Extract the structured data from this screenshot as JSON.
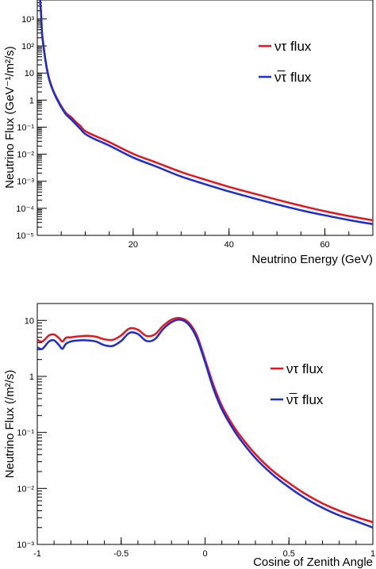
{
  "chart_data": [
    {
      "type": "line",
      "title": "",
      "xlabel": "Neutrino Energy (GeV)",
      "ylabel": "Neutrino Flux (GeV⁻¹/m²/s)",
      "xlim": [
        0,
        70
      ],
      "ylim": [
        1e-05,
        5000
      ],
      "yscale": "log",
      "xticks": [
        20,
        40,
        60
      ],
      "xtick_labels": [
        "20",
        "40",
        "60"
      ],
      "yticks": [
        1e-05,
        0.0001,
        0.001,
        0.01,
        0.1,
        1,
        10,
        100,
        1000
      ],
      "ytick_labels": [
        "10⁻⁵",
        "10⁻⁴",
        "10⁻³",
        "10⁻²",
        "10⁻¹",
        "1",
        "10",
        "10²",
        "10³"
      ],
      "grid": false,
      "legend": "top-right",
      "series": [
        {
          "name": "ντ flux",
          "color": "#e8141c",
          "x": [
            0.6,
            0.8,
            1.0,
            1.3,
            1.6,
            2.0,
            2.5,
            3,
            3.5,
            4,
            5,
            6,
            7,
            8,
            9,
            10,
            12,
            15,
            20,
            25,
            30,
            35,
            40,
            45,
            50,
            55,
            60,
            65,
            70
          ],
          "y": [
            5000,
            1500,
            300,
            100,
            40,
            15,
            6,
            3.2,
            1.9,
            1.25,
            0.6,
            0.33,
            0.24,
            0.16,
            0.11,
            0.072,
            0.048,
            0.028,
            0.0103,
            0.0048,
            0.0022,
            0.00115,
            0.00062,
            0.00036,
            0.00021,
            0.000125,
            7.8e-05,
            5.2e-05,
            3.6e-05
          ]
        },
        {
          "name": "ν̅τ flux",
          "color": "#1b2bd6",
          "x": [
            0.6,
            0.8,
            1.0,
            1.3,
            1.6,
            2.0,
            2.5,
            3,
            3.5,
            4,
            5,
            6,
            7,
            8,
            9,
            10,
            12,
            15,
            20,
            25,
            30,
            35,
            40,
            45,
            50,
            55,
            60,
            65,
            70
          ],
          "y": [
            5000,
            1400,
            280,
            95,
            38,
            14,
            5.6,
            3.0,
            1.8,
            1.15,
            0.55,
            0.29,
            0.2,
            0.13,
            0.085,
            0.056,
            0.036,
            0.021,
            0.0075,
            0.0034,
            0.0015,
            0.00078,
            0.00042,
            0.00024,
            0.00014,
            8.5e-05,
            5.5e-05,
            3.7e-05,
            2.6e-05
          ]
        }
      ]
    },
    {
      "type": "line",
      "title": "",
      "xlabel": "Cosine of Zenith Angle",
      "ylabel": "Neutrino Flux (/m²/s)",
      "xlim": [
        -1,
        1
      ],
      "ylim": [
        0.001,
        20
      ],
      "yscale": "log",
      "xticks": [
        -1,
        -0.5,
        0,
        0.5,
        1
      ],
      "xtick_labels": [
        "-1",
        "-0.5",
        "0",
        "0.5",
        "1"
      ],
      "yticks": [
        0.001,
        0.01,
        0.1,
        1,
        10
      ],
      "ytick_labels": [
        "10⁻³",
        "10⁻²",
        "10⁻¹",
        "1",
        "10"
      ],
      "grid": false,
      "legend": "right",
      "series": [
        {
          "name": "ντ flux",
          "color": "#e8141c",
          "x": [
            -1.0,
            -0.97,
            -0.93,
            -0.9,
            -0.87,
            -0.85,
            -0.83,
            -0.8,
            -0.75,
            -0.7,
            -0.65,
            -0.6,
            -0.55,
            -0.5,
            -0.45,
            -0.4,
            -0.35,
            -0.3,
            -0.25,
            -0.2,
            -0.15,
            -0.1,
            -0.05,
            0.0,
            0.05,
            0.1,
            0.15,
            0.2,
            0.3,
            0.4,
            0.5,
            0.6,
            0.7,
            0.8,
            0.9,
            1.0
          ],
          "y": [
            4.5,
            4.2,
            5.4,
            5.6,
            4.8,
            4.2,
            4.9,
            5.0,
            5.2,
            5.3,
            5.1,
            4.6,
            4.5,
            5.4,
            7.2,
            6.8,
            5.3,
            5.6,
            8.0,
            10.3,
            11.0,
            9.3,
            5.5,
            2.0,
            0.7,
            0.3,
            0.16,
            0.095,
            0.041,
            0.021,
            0.0125,
            0.0079,
            0.0054,
            0.004,
            0.0031,
            0.0025
          ]
        },
        {
          "name": "ν̅τ flux",
          "color": "#1b2bd6",
          "x": [
            -1.0,
            -0.97,
            -0.93,
            -0.9,
            -0.87,
            -0.85,
            -0.83,
            -0.8,
            -0.75,
            -0.7,
            -0.65,
            -0.6,
            -0.55,
            -0.5,
            -0.45,
            -0.4,
            -0.35,
            -0.3,
            -0.25,
            -0.2,
            -0.15,
            -0.1,
            -0.05,
            0.0,
            0.05,
            0.1,
            0.15,
            0.2,
            0.3,
            0.4,
            0.5,
            0.6,
            0.7,
            0.8,
            0.9,
            1.0
          ],
          "y": [
            3.3,
            3.1,
            4.2,
            4.4,
            3.6,
            3.1,
            3.8,
            4.2,
            4.4,
            4.4,
            4.2,
            3.6,
            3.5,
            4.3,
            6.0,
            5.7,
            4.3,
            4.6,
            7.0,
            9.3,
            10.3,
            8.6,
            4.9,
            1.8,
            0.6,
            0.26,
            0.14,
            0.082,
            0.035,
            0.018,
            0.0105,
            0.0066,
            0.0045,
            0.0033,
            0.0026,
            0.002
          ]
        }
      ]
    }
  ]
}
